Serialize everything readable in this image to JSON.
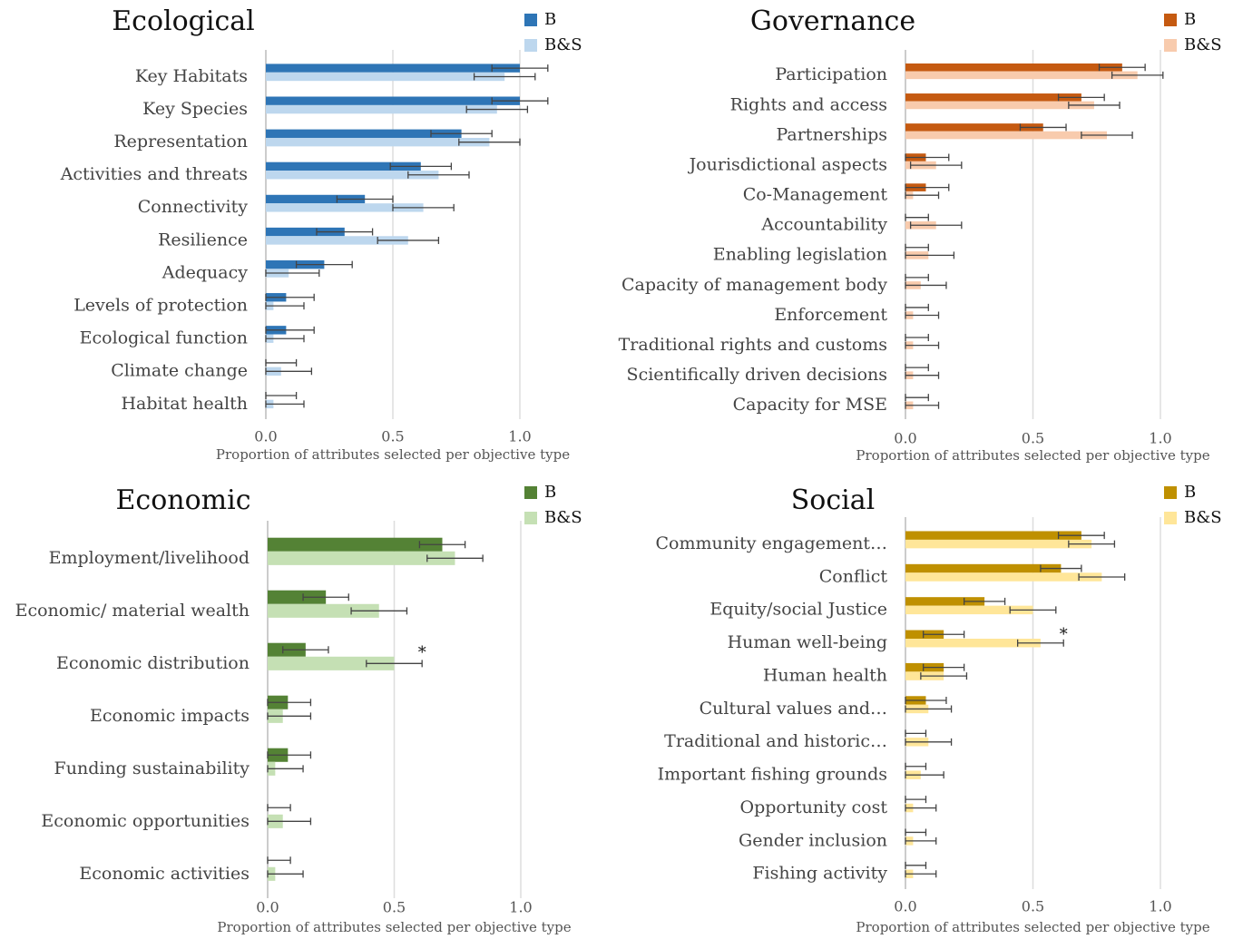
{
  "chart_data": [
    {
      "type": "bar",
      "orientation": "horizontal",
      "title": "Ecological",
      "categories": [
        "Key Habitats",
        "Key Species",
        "Representation",
        "Activities and threats",
        "Connectivity",
        "Resilience",
        "Adequacy",
        "Levels of protection",
        "Ecological function",
        "Climate change",
        "Habitat health"
      ],
      "series": [
        {
          "name": "B",
          "color": "#2e75b6",
          "values": [
            1.0,
            1.0,
            0.77,
            0.61,
            0.39,
            0.31,
            0.23,
            0.08,
            0.08,
            0,
            0
          ],
          "errors": [
            0.11,
            0.11,
            0.12,
            0.12,
            0.11,
            0.11,
            0.11,
            0.11,
            0.11,
            0.12,
            0.12
          ]
        },
        {
          "name": "B&S",
          "color": "#bdd7ee",
          "values": [
            0.94,
            0.91,
            0.88,
            0.68,
            0.62,
            0.56,
            0.09,
            0.03,
            0.03,
            0.06,
            0.03
          ],
          "errors": [
            0.12,
            0.12,
            0.12,
            0.12,
            0.12,
            0.12,
            0.12,
            0.12,
            0.12,
            0.12,
            0.12
          ]
        }
      ],
      "xlim": [
        0,
        1.0
      ],
      "xticks": [
        {
          "value": 0,
          "label": "0.0"
        },
        {
          "value": 0.5,
          "label": "0.5"
        },
        {
          "value": 1.0,
          "label": "1.0"
        }
      ],
      "xlabel": "Proportion of attributes selected per objective type",
      "grid": true,
      "legend": "top-right",
      "annotations": []
    },
    {
      "type": "bar",
      "orientation": "horizontal",
      "title": "Governance",
      "categories": [
        "Participation",
        "Rights and access",
        "Partnerships",
        "Jourisdictional aspects",
        "Co-Management",
        "Accountability",
        "Enabling legislation",
        "Capacity of management body",
        "Enforcement",
        "Traditional rights and customs",
        "Scientifically driven decisions",
        "Capacity for MSE"
      ],
      "series": [
        {
          "name": "B",
          "color": "#c55a11",
          "values": [
            0.85,
            0.69,
            0.54,
            0.08,
            0.08,
            0,
            0,
            0,
            0,
            0,
            0,
            0
          ],
          "errors": [
            0.09,
            0.09,
            0.09,
            0.09,
            0.09,
            0.09,
            0.09,
            0.09,
            0.09,
            0.09,
            0.09,
            0.09
          ]
        },
        {
          "name": "B&S",
          "color": "#f8cbad",
          "values": [
            0.91,
            0.74,
            0.79,
            0.12,
            0.03,
            0.12,
            0.09,
            0.06,
            0.03,
            0.03,
            0.03,
            0.03
          ],
          "errors": [
            0.1,
            0.1,
            0.1,
            0.1,
            0.1,
            0.1,
            0.1,
            0.1,
            0.1,
            0.1,
            0.1,
            0.1
          ]
        }
      ],
      "xlim": [
        0,
        1.0
      ],
      "xticks": [
        {
          "value": 0,
          "label": "0.0"
        },
        {
          "value": 0.5,
          "label": "0.5"
        },
        {
          "value": 1.0,
          "label": "1.0"
        }
      ],
      "xlabel": "Proportion of attributes selected per objective type",
      "grid": true,
      "legend": "top-right",
      "annotations": []
    },
    {
      "type": "bar",
      "orientation": "horizontal",
      "title": "Economic",
      "categories": [
        "Employment/livelihood",
        "Economic/ material wealth",
        "Economic distribution",
        "Economic impacts",
        "Funding sustainability",
        "Economic opportunities",
        "Economic activities"
      ],
      "series": [
        {
          "name": "B",
          "color": "#548235",
          "values": [
            0.69,
            0.23,
            0.15,
            0.08,
            0.08,
            0,
            0
          ],
          "errors": [
            0.09,
            0.09,
            0.09,
            0.09,
            0.09,
            0.09,
            0.09
          ]
        },
        {
          "name": "B&S",
          "color": "#c5e0b4",
          "values": [
            0.74,
            0.44,
            0.5,
            0.06,
            0.03,
            0.06,
            0.03
          ],
          "errors": [
            0.11,
            0.11,
            0.11,
            0.11,
            0.11,
            0.11,
            0.11
          ]
        }
      ],
      "xlim": [
        0,
        1.0
      ],
      "xticks": [
        {
          "value": 0,
          "label": "0.0"
        },
        {
          "value": 0.5,
          "label": "0.5"
        },
        {
          "value": 1.0,
          "label": "1.0"
        }
      ],
      "xlabel": "Proportion of attributes selected per objective type",
      "grid": true,
      "legend": "top-right",
      "annotations": [
        {
          "text": "*",
          "category": "Economic distribution"
        }
      ]
    },
    {
      "type": "bar",
      "orientation": "horizontal",
      "title": "Social",
      "categories": [
        "Community engagement…",
        "Conflict",
        "Equity/social Justice",
        "Human well-being",
        "Human health",
        "Cultural values and…",
        "Traditional and historic…",
        "Important fishing grounds",
        "Opportunity cost",
        "Gender inclusion",
        "Fishing activity"
      ],
      "series": [
        {
          "name": "B",
          "color": "#bf9000",
          "values": [
            0.69,
            0.61,
            0.31,
            0.15,
            0.15,
            0.08,
            0,
            0,
            0,
            0,
            0
          ],
          "errors": [
            0.09,
            0.08,
            0.08,
            0.08,
            0.08,
            0.08,
            0.08,
            0.08,
            0.08,
            0.08,
            0.08
          ]
        },
        {
          "name": "B&S",
          "color": "#ffe699",
          "values": [
            0.73,
            0.77,
            0.5,
            0.53,
            0.15,
            0.09,
            0.09,
            0.06,
            0.03,
            0.03,
            0.03
          ],
          "errors": [
            0.09,
            0.09,
            0.09,
            0.09,
            0.09,
            0.09,
            0.09,
            0.09,
            0.09,
            0.09,
            0.09
          ]
        }
      ],
      "xlim": [
        0,
        1.0
      ],
      "xticks": [
        {
          "value": 0,
          "label": "0.0"
        },
        {
          "value": 0.5,
          "label": "0.5"
        },
        {
          "value": 1.0,
          "label": "1.0"
        }
      ],
      "xlabel": "Proportion of attributes selected per objective type",
      "grid": true,
      "legend": "top-right",
      "annotations": [
        {
          "text": "*",
          "category": "Human well-being"
        }
      ]
    }
  ]
}
